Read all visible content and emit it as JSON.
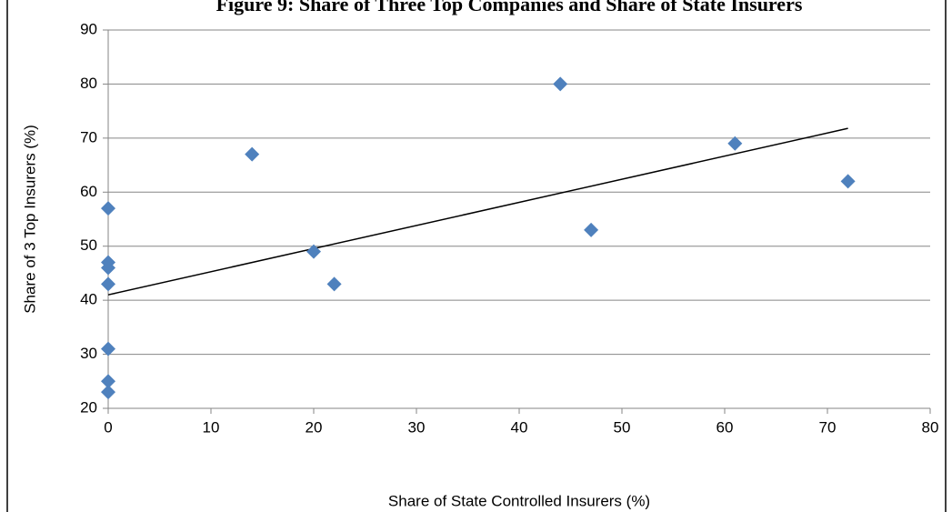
{
  "chart_data": {
    "type": "scatter",
    "title": "Figure 9: Share of Three Top Companies and Share of State Insurers",
    "x_label": "Share of State Controlled Insurers (%)",
    "y_label": "Share of 3 Top Insurers (%)",
    "series": [
      {
        "color": "#4f81bd",
        "x": [
          0,
          0,
          0,
          0,
          0,
          0,
          0,
          14,
          20,
          22,
          44,
          47,
          61,
          72
        ],
        "values": [
          57,
          47,
          46,
          43,
          31,
          25,
          23,
          67,
          49,
          43,
          80,
          53,
          69,
          62
        ]
      }
    ],
    "trendline": {
      "color": "#000000",
      "x": [
        0,
        72
      ],
      "values": [
        41,
        71.8
      ]
    },
    "xlim": [
      0,
      80
    ],
    "xticks": [
      0,
      10,
      20,
      30,
      40,
      50,
      60,
      70,
      80
    ],
    "ylim": [
      20,
      90
    ],
    "yticks": [
      20,
      30,
      40,
      50,
      60,
      70,
      80,
      90
    ],
    "grid": true
  }
}
